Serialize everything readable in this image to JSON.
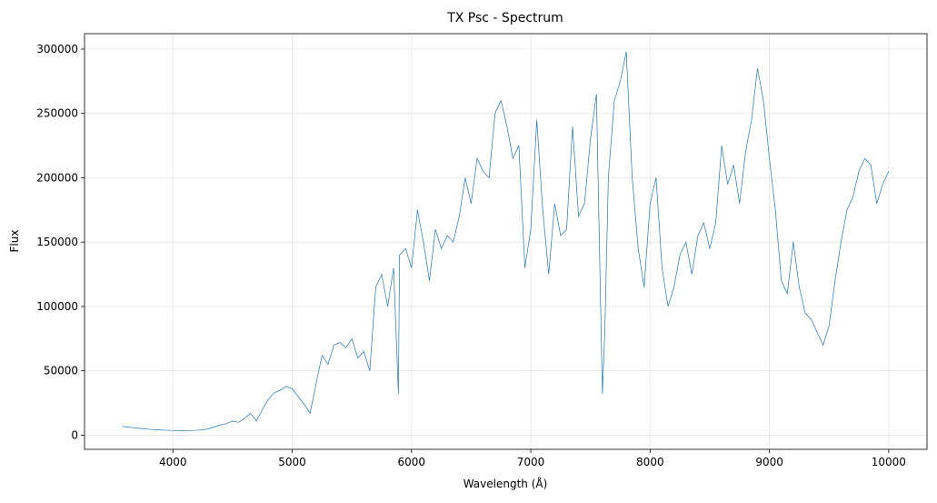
{
  "chart_data": {
    "type": "line",
    "title": "TX Psc - Spectrum",
    "x_label": "Wavelength (Å)",
    "y_label": "Flux",
    "x": [
      3580,
      3600,
      3650,
      3700,
      3750,
      3800,
      3850,
      3900,
      3950,
      4000,
      4050,
      4100,
      4150,
      4200,
      4250,
      4300,
      4350,
      4400,
      4450,
      4500,
      4550,
      4600,
      4650,
      4700,
      4750,
      4800,
      4850,
      4900,
      4950,
      5000,
      5050,
      5100,
      5150,
      5200,
      5250,
      5300,
      5350,
      5400,
      5450,
      5500,
      5550,
      5600,
      5650,
      5700,
      5750,
      5800,
      5850,
      5890,
      5900,
      5950,
      6000,
      6050,
      6100,
      6150,
      6200,
      6250,
      6300,
      6350,
      6400,
      6450,
      6500,
      6550,
      6600,
      6650,
      6700,
      6750,
      6800,
      6850,
      6900,
      6950,
      7000,
      7050,
      7100,
      7150,
      7200,
      7250,
      7300,
      7350,
      7400,
      7450,
      7500,
      7550,
      7600,
      7620,
      7650,
      7700,
      7750,
      7800,
      7850,
      7900,
      7950,
      8000,
      8050,
      8100,
      8150,
      8200,
      8250,
      8300,
      8350,
      8400,
      8450,
      8500,
      8550,
      8600,
      8650,
      8700,
      8750,
      8800,
      8850,
      8900,
      8950,
      9000,
      9050,
      9100,
      9150,
      9200,
      9250,
      9300,
      9350,
      9400,
      9450,
      9500,
      9550,
      9600,
      9650,
      9700,
      9750,
      9800,
      9850,
      9900,
      9950,
      10000
    ],
    "values": [
      7000,
      6500,
      6000,
      5500,
      5000,
      4600,
      4300,
      4000,
      3800,
      3700,
      3600,
      3600,
      3700,
      3800,
      4200,
      5000,
      6500,
      8000,
      9000,
      11000,
      10000,
      13000,
      17000,
      11000,
      20000,
      28000,
      33000,
      35000,
      38000,
      36000,
      30000,
      24000,
      17000,
      40000,
      62000,
      55000,
      70000,
      72000,
      68000,
      75000,
      60000,
      65000,
      50000,
      115000,
      125000,
      100000,
      130000,
      32000,
      140000,
      145000,
      130000,
      175000,
      150000,
      120000,
      160000,
      145000,
      155000,
      150000,
      170000,
      200000,
      180000,
      215000,
      205000,
      200000,
      250000,
      260000,
      240000,
      215000,
      225000,
      130000,
      160000,
      245000,
      175000,
      125000,
      180000,
      155000,
      160000,
      240000,
      170000,
      180000,
      230000,
      265000,
      32000,
      80000,
      200000,
      260000,
      275000,
      298000,
      200000,
      145000,
      115000,
      180000,
      200000,
      130000,
      100000,
      115000,
      140000,
      150000,
      125000,
      155000,
      165000,
      145000,
      165000,
      225000,
      195000,
      210000,
      180000,
      220000,
      245000,
      285000,
      260000,
      215000,
      175000,
      120000,
      110000,
      150000,
      115000,
      95000,
      90000,
      80000,
      70000,
      85000,
      120000,
      150000,
      175000,
      185000,
      205000,
      215000,
      210000,
      180000,
      195000,
      205000
    ],
    "color": "#1f77b4",
    "xlim": [
      3259,
      10321
    ],
    "xticks": [
      4000,
      5000,
      6000,
      7000,
      8000,
      9000,
      10000
    ],
    "ylim": [
      -11000,
      312000
    ],
    "yticks": [
      0,
      50000,
      100000,
      150000,
      200000,
      250000,
      300000
    ],
    "grid": true
  }
}
